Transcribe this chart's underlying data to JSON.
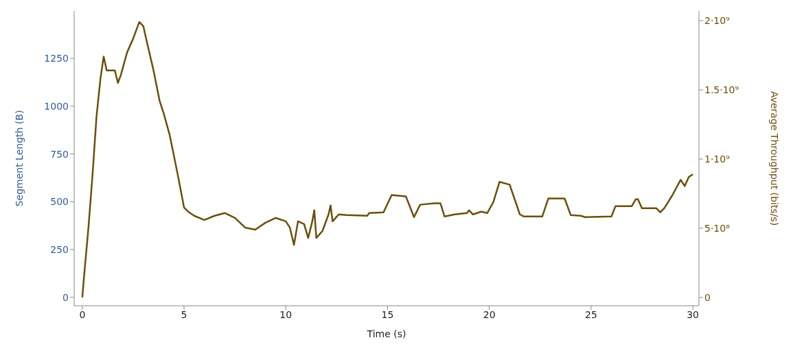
{
  "chart_data": {
    "type": "line",
    "xlabel": "Time (s)",
    "ylabel": "Segment Length (B)",
    "y2label": "Average Throughput (bits/s)",
    "xlim": [
      -0.4,
      30.3
    ],
    "xticks": [
      0,
      5,
      10,
      15,
      20,
      25,
      30
    ],
    "ylim": [
      -44,
      1498
    ],
    "yticks": [
      0,
      250,
      500,
      750,
      1000,
      1250
    ],
    "y2lim": [
      -60000000,
      2070000000
    ],
    "y2ticks": [
      0,
      {
        "value": 500000000,
        "label": "5·10⁸"
      },
      {
        "value": 1000000000,
        "label": "1·10⁹"
      },
      {
        "value": 1500000000,
        "label": "1.5·10⁹"
      },
      {
        "value": 2000000000,
        "label": "2·10⁹"
      }
    ],
    "grid": false,
    "legend": false,
    "marker": "none",
    "line_style": "solid",
    "series": [
      {
        "color": "#6b4f0a",
        "axis": "y2",
        "x": [
          0,
          0.1,
          0.3,
          0.5,
          0.7,
          0.9,
          1.05,
          1.2,
          1.6,
          1.75,
          1.9,
          2.2,
          2.5,
          2.8,
          3.0,
          3.2,
          3.5,
          3.8,
          4.0,
          4.3,
          4.7,
          5.0,
          5.2,
          5.5,
          6.0,
          6.5,
          7.0,
          7.5,
          8.0,
          8.5,
          9.0,
          9.5,
          10.0,
          10.2,
          10.4,
          10.6,
          10.9,
          11.1,
          11.3,
          11.4,
          11.5,
          11.8,
          12.1,
          12.2,
          12.3,
          12.6,
          13.0,
          14.0,
          14.1,
          14.8,
          15.2,
          15.9,
          16.3,
          16.6,
          17.3,
          17.6,
          17.8,
          18.3,
          18.9,
          19.0,
          19.2,
          19.6,
          19.9,
          20.2,
          20.5,
          21.0,
          21.5,
          21.7,
          22.6,
          22.9,
          23.7,
          24.0,
          24.5,
          24.7,
          26.0,
          26.2,
          27.0,
          27.2,
          27.3,
          27.5,
          28.2,
          28.4,
          28.6,
          29.0,
          29.4,
          29.6,
          29.8,
          30.0
        ],
        "values": [
          0,
          175000000,
          500000000,
          880000000,
          1310000000,
          1590000000,
          1740000000,
          1640000000,
          1640000000,
          1550000000,
          1610000000,
          1770000000,
          1870000000,
          1990000000,
          1960000000,
          1830000000,
          1640000000,
          1420000000,
          1330000000,
          1170000000,
          880000000,
          650000000,
          620000000,
          590000000,
          560000000,
          590000000,
          610000000,
          575000000,
          505000000,
          490000000,
          540000000,
          575000000,
          550000000,
          505000000,
          380000000,
          550000000,
          530000000,
          430000000,
          550000000,
          630000000,
          430000000,
          480000000,
          600000000,
          665000000,
          550000000,
          600000000,
          595000000,
          590000000,
          610000000,
          615000000,
          740000000,
          730000000,
          580000000,
          670000000,
          680000000,
          680000000,
          585000000,
          600000000,
          610000000,
          630000000,
          600000000,
          620000000,
          610000000,
          690000000,
          835000000,
          815000000,
          600000000,
          585000000,
          585000000,
          715000000,
          715000000,
          595000000,
          590000000,
          580000000,
          585000000,
          660000000,
          660000000,
          710000000,
          710000000,
          645000000,
          645000000,
          615000000,
          645000000,
          740000000,
          850000000,
          805000000,
          870000000,
          890000000
        ]
      }
    ]
  }
}
